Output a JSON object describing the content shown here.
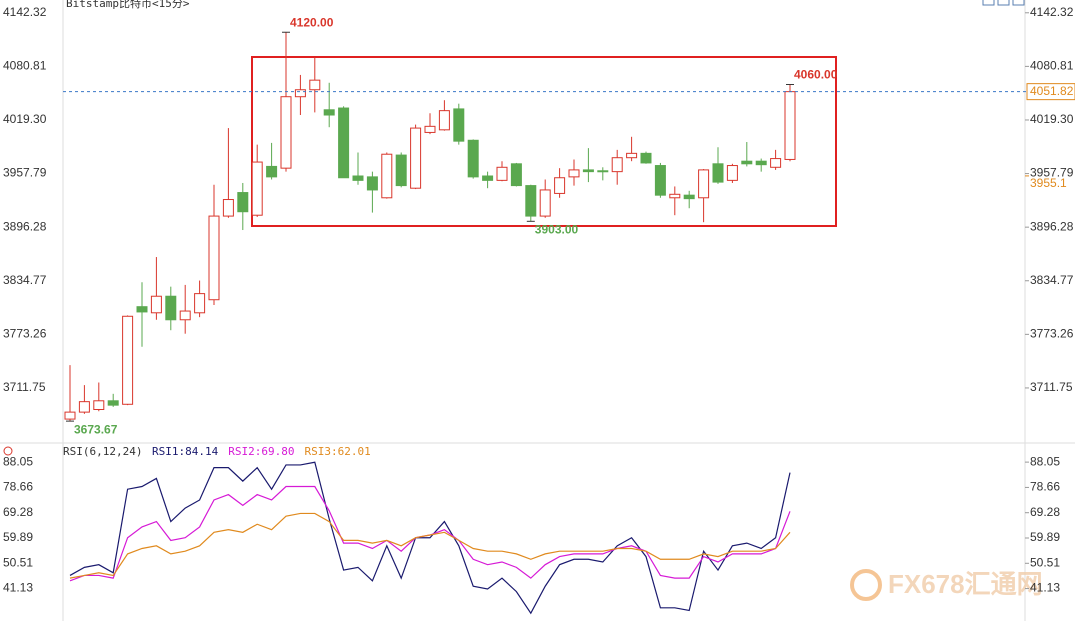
{
  "chart_data": [
    {
      "type": "candlestick",
      "title": "Bitstamp比特币<15分>",
      "up_color": "#d9362b",
      "down_color": "#5aa84f",
      "open": [
        3676,
        3684,
        3687,
        3697,
        3693,
        3805,
        3798,
        3817,
        3790,
        3798,
        3813,
        3909,
        3936,
        3910,
        3966,
        3964,
        4046,
        4054,
        4031,
        4033,
        3955,
        3954,
        3930,
        3979,
        3941,
        4005,
        4008,
        4032,
        3996,
        3955,
        3950,
        3969,
        3944,
        3909,
        3935,
        3954,
        3962,
        3961,
        3960,
        3976,
        3981,
        3967,
        3930,
        3933,
        3930,
        3969,
        3950,
        3972,
        3972,
        3965,
        3974
      ],
      "high": [
        3738,
        3715,
        3718,
        3705,
        3795,
        3833,
        3862,
        3828,
        3830,
        3835,
        3945,
        4010,
        3947,
        3991,
        3993,
        4120,
        4071,
        4091,
        4062,
        4035,
        3982,
        3960,
        3982,
        3982,
        4014,
        4027,
        4042,
        4038,
        3997,
        3960,
        3972,
        3970,
        3945,
        3951,
        3964,
        3974,
        3987,
        3965,
        3985,
        4000,
        3983,
        3970,
        3943,
        3938,
        3963,
        3988,
        3969,
        3994,
        3975,
        3985,
        4060
      ],
      "low": [
        3673.67,
        3682,
        3685,
        3690,
        3692,
        3759,
        3790,
        3778,
        3774,
        3793,
        3807,
        3907,
        3893,
        3908,
        3951,
        3960,
        4025,
        4028,
        4011,
        3953,
        3945,
        3913,
        3929,
        3942,
        3940,
        4003,
        4007,
        3991,
        3952,
        3941,
        3949,
        3943,
        3903,
        3907,
        3930,
        3944,
        3948,
        3950,
        3945,
        3972,
        3969,
        3930,
        3910,
        3918,
        3902,
        3946,
        3947,
        3966,
        3960,
        3962,
        3972
      ],
      "close": [
        3684,
        3696,
        3697,
        3692,
        3794,
        3799,
        3817,
        3790,
        3800,
        3820,
        3909,
        3928,
        3914,
        3971,
        3954,
        4046,
        4054,
        4065,
        4025,
        3953,
        3950,
        3939,
        3980,
        3944,
        4010,
        4012,
        4030,
        3995,
        3954,
        3950,
        3965,
        3944,
        3909,
        3939,
        3953,
        3962,
        3960,
        3960,
        3976,
        3981,
        3970,
        3933,
        3934,
        3929,
        3962,
        3948,
        3967,
        3969,
        3968,
        3975,
        4051.82
      ],
      "ylim": [
        3652,
        4157
      ],
      "yticks": [
        4142.32,
        4080.81,
        {
          "value": 4019.3,
          "label": "4019.30"
        },
        3957.79,
        3896.28,
        3834.77,
        3773.26,
        3711.75
      ],
      "annotations": [
        {
          "value": 4120,
          "label": "4120.00"
        },
        {
          "value": 4060,
          "label": "4060.00"
        },
        {
          "value": 3903,
          "label": "3903.00"
        },
        {
          "value": 3673.67,
          "label": "3673.67"
        }
      ],
      "last_price": 4051.82,
      "last_price_color": "#e08a1e",
      "ref_price": 3955.1,
      "watermark": "FX678汇通网"
    },
    {
      "type": "line",
      "title": "RSI(6,12,24)",
      "ylim": [
        29.1,
        94.4
      ],
      "yticks": [
        88.05,
        78.66,
        69.28,
        59.89,
        50.51,
        41.13
      ],
      "series": [
        {
          "name": "RSI1:84.14",
          "color": "#1a1a6e",
          "values": [
            46,
            49,
            50,
            47,
            78,
            79,
            82,
            66,
            71,
            74,
            86,
            86,
            81,
            86,
            78,
            87,
            87,
            88,
            67,
            48,
            49,
            44,
            57,
            45,
            60,
            60,
            66,
            57,
            42,
            41,
            45,
            40,
            32,
            42,
            50,
            52,
            52,
            51,
            57,
            60,
            53,
            34,
            34,
            33,
            55,
            48,
            57,
            58,
            56,
            60,
            84.14
          ]
        },
        {
          "name": "RSI2:69.80",
          "color": "#d61ad6",
          "values": [
            44,
            46,
            46,
            45,
            60,
            64,
            66,
            59,
            60,
            64,
            74,
            76,
            72,
            76,
            74,
            79,
            79,
            79,
            70,
            58,
            58,
            56,
            59,
            55,
            60,
            61,
            63,
            59,
            52,
            50,
            51,
            49,
            45,
            50,
            53,
            54,
            54,
            54,
            56,
            57,
            55,
            46,
            45,
            45,
            53,
            51,
            54,
            54,
            54,
            56,
            69.8
          ]
        },
        {
          "name": "RSI3:62.01",
          "color": "#e08a1e",
          "values": [
            45,
            46,
            47,
            46,
            54,
            56,
            57,
            54,
            55,
            57,
            62,
            63,
            62,
            65,
            63,
            68,
            69,
            69,
            66,
            59,
            59,
            58,
            59,
            57,
            60,
            61,
            62,
            59,
            56,
            55,
            55,
            54,
            52,
            54,
            55,
            55,
            55,
            55,
            56,
            56,
            55,
            52,
            52,
            52,
            54,
            53,
            55,
            55,
            55,
            56,
            62.01
          ]
        }
      ]
    }
  ]
}
